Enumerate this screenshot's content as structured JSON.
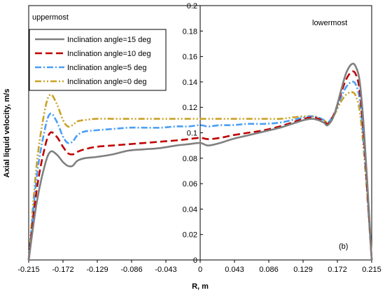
{
  "chart_data": {
    "type": "line",
    "title": "",
    "xlabel": "R, m",
    "ylabel": "Axial liquid velocity, m/s",
    "xlim": [
      -0.215,
      0.215
    ],
    "ylim": [
      0,
      0.2
    ],
    "x_ticks": [
      "-0.215",
      "-0.172",
      "-0.129",
      "-0.086",
      "-0.043",
      "0",
      "0.043",
      "0.086",
      "0.129",
      "0.172",
      "0.215"
    ],
    "y_ticks": [
      "0",
      "0.02",
      "0.04",
      "0.06",
      "0.08",
      "0.1",
      "0.12",
      "0.14",
      "0.16",
      "0.18",
      "0.2"
    ],
    "grid": false,
    "legend_position": "top-left",
    "annotations": {
      "left": "uppermost",
      "right": "lowermost",
      "panel": "(b)"
    },
    "x": [
      -0.215,
      -0.205,
      -0.195,
      -0.188,
      -0.18,
      -0.172,
      -0.166,
      -0.16,
      -0.154,
      -0.145,
      -0.13,
      -0.11,
      -0.09,
      -0.07,
      -0.05,
      -0.03,
      -0.015,
      0,
      0.01,
      0.025,
      0.04,
      0.06,
      0.08,
      0.1,
      0.115,
      0.13,
      0.14,
      0.148,
      0.155,
      0.16,
      0.168,
      0.176,
      0.183,
      0.19,
      0.195,
      0.2,
      0.205,
      0.21,
      0.215
    ],
    "series": [
      {
        "name": "Inclination angle=15 deg",
        "color": "#7f7f7f",
        "dash": "solid",
        "values": [
          0.0,
          0.045,
          0.074,
          0.085,
          0.083,
          0.077,
          0.074,
          0.074,
          0.078,
          0.08,
          0.081,
          0.083,
          0.086,
          0.087,
          0.088,
          0.09,
          0.091,
          0.092,
          0.09,
          0.092,
          0.095,
          0.098,
          0.101,
          0.104,
          0.107,
          0.11,
          0.111,
          0.11,
          0.108,
          0.106,
          0.114,
          0.132,
          0.147,
          0.154,
          0.152,
          0.14,
          0.105,
          0.055,
          0.0
        ]
      },
      {
        "name": "Inclination angle=10 deg",
        "color": "#c00000",
        "dash": "long-dash",
        "values": [
          0.0,
          0.055,
          0.088,
          0.1,
          0.097,
          0.089,
          0.084,
          0.083,
          0.085,
          0.087,
          0.089,
          0.09,
          0.091,
          0.092,
          0.093,
          0.094,
          0.095,
          0.096,
          0.095,
          0.096,
          0.098,
          0.1,
          0.102,
          0.105,
          0.108,
          0.111,
          0.112,
          0.111,
          0.109,
          0.107,
          0.115,
          0.13,
          0.142,
          0.148,
          0.146,
          0.133,
          0.098,
          0.05,
          0.0
        ]
      },
      {
        "name": "Inclination angle=5 deg",
        "color": "#4a9ff5",
        "dash": "dash-dot",
        "values": [
          0.0,
          0.065,
          0.102,
          0.115,
          0.109,
          0.097,
          0.092,
          0.093,
          0.098,
          0.101,
          0.102,
          0.103,
          0.104,
          0.104,
          0.104,
          0.105,
          0.105,
          0.106,
          0.105,
          0.106,
          0.106,
          0.107,
          0.107,
          0.108,
          0.11,
          0.112,
          0.113,
          0.112,
          0.11,
          0.108,
          0.115,
          0.127,
          0.136,
          0.14,
          0.138,
          0.126,
          0.093,
          0.048,
          0.0
        ]
      },
      {
        "name": "Inclination angle=0 deg",
        "color": "#c9a227",
        "dash": "dash-dot-dot",
        "values": [
          0.0,
          0.075,
          0.117,
          0.13,
          0.123,
          0.11,
          0.105,
          0.106,
          0.109,
          0.11,
          0.111,
          0.111,
          0.111,
          0.111,
          0.111,
          0.111,
          0.111,
          0.111,
          0.111,
          0.111,
          0.111,
          0.111,
          0.111,
          0.111,
          0.112,
          0.113,
          0.113,
          0.112,
          0.11,
          0.108,
          0.114,
          0.124,
          0.13,
          0.132,
          0.129,
          0.117,
          0.086,
          0.045,
          0.0
        ]
      }
    ]
  }
}
